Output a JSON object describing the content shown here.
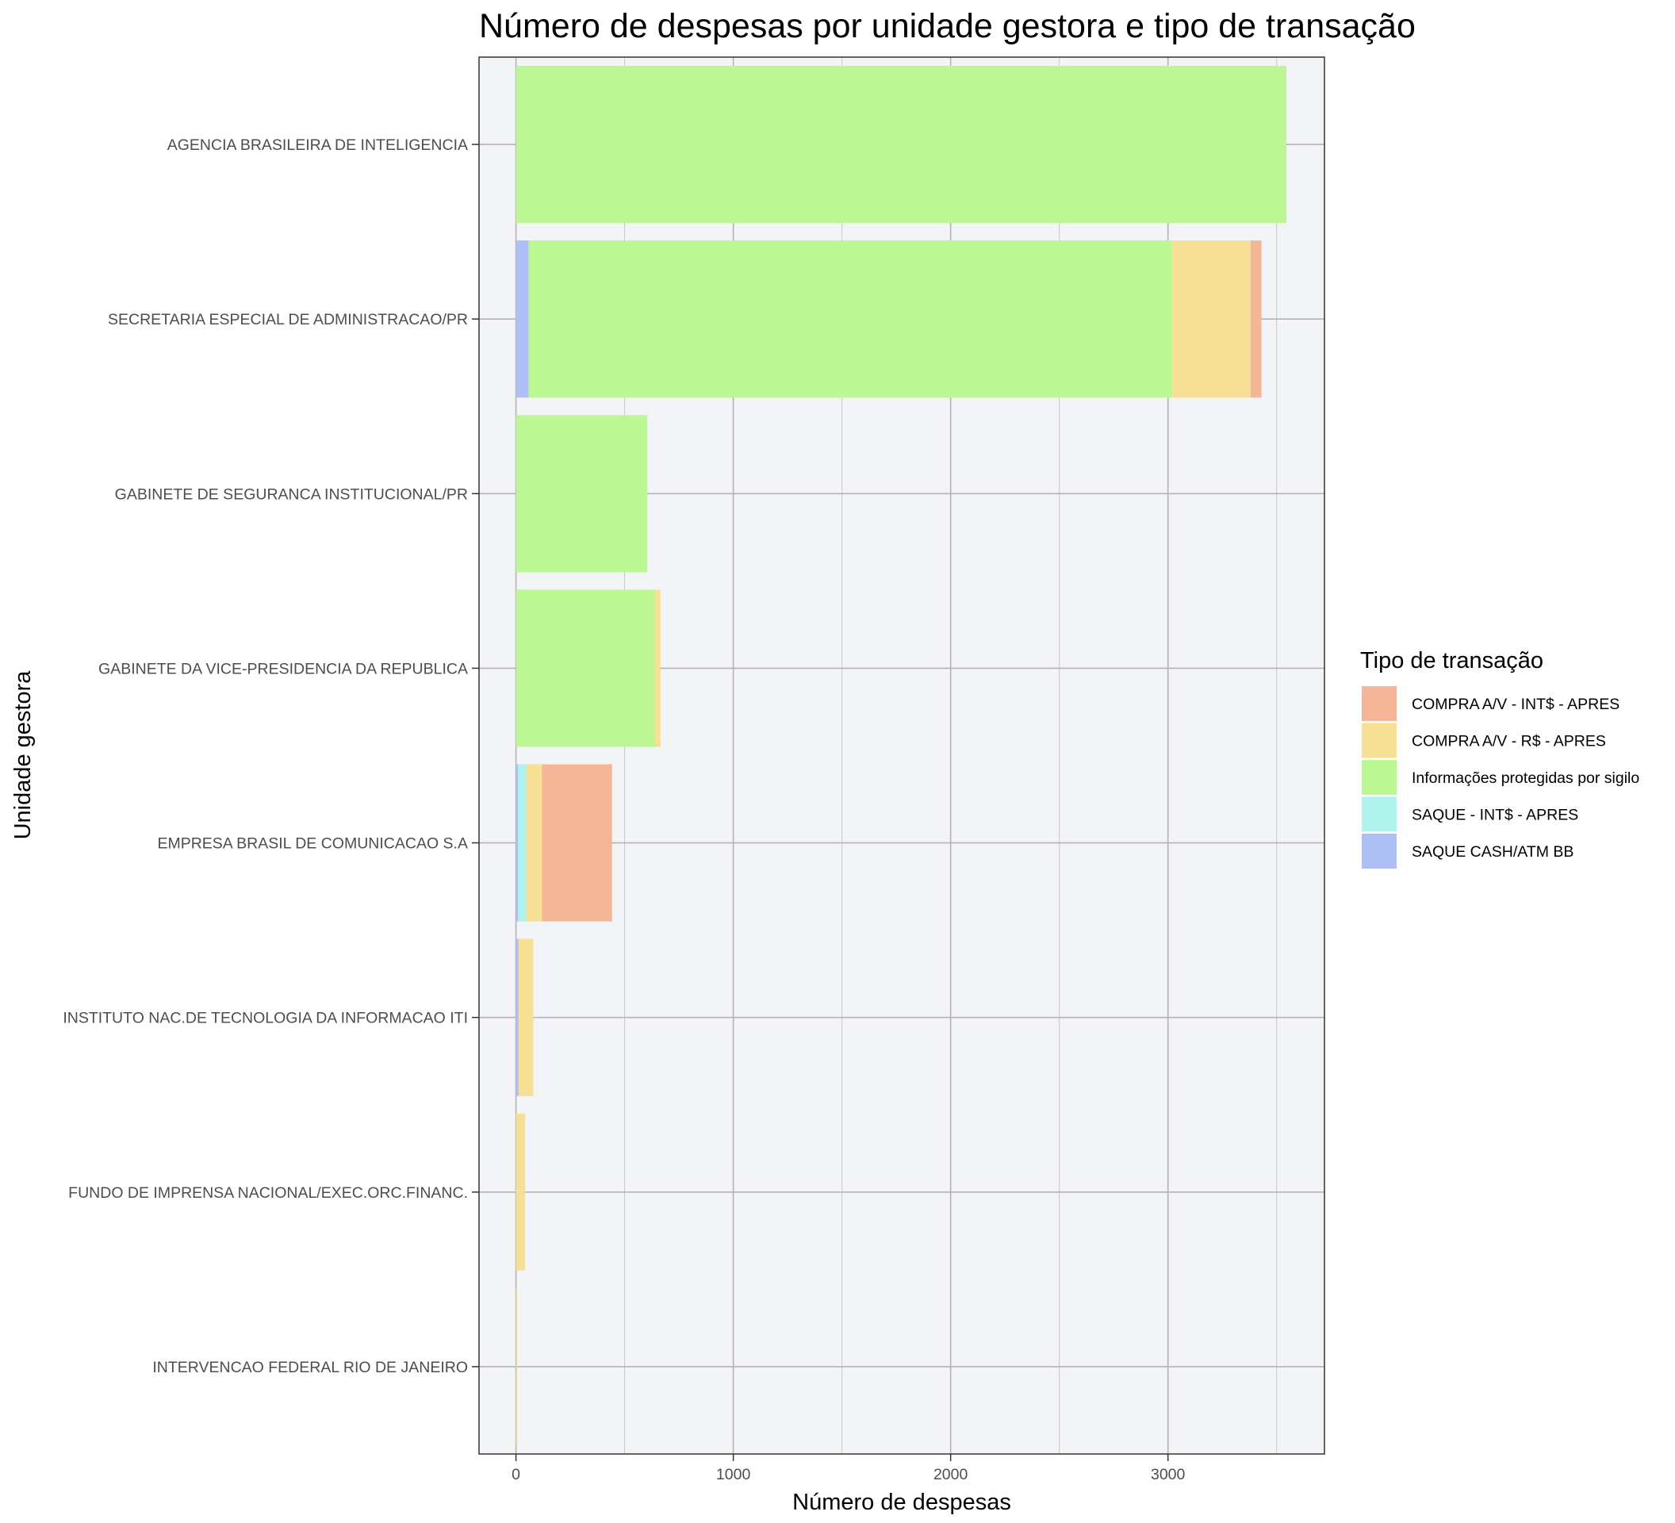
{
  "chart_data": {
    "type": "bar",
    "orientation": "horizontal",
    "stacked": true,
    "title": "Número de despesas por unidade gestora e tipo de transação",
    "xlabel": "Número de despesas",
    "ylabel": "Unidade gestora",
    "xlim": [
      -170,
      3720
    ],
    "xticks": [
      0,
      1000,
      2000,
      3000
    ],
    "grid": true,
    "legend": {
      "title": "Tipo de transação",
      "position": "right"
    },
    "categories": [
      "AGENCIA BRASILEIRA DE INTELIGENCIA",
      "SECRETARIA ESPECIAL DE ADMINISTRACAO/PR",
      "GABINETE DE SEGURANCA INSTITUCIONAL/PR",
      "GABINETE DA VICE-PRESIDENCIA DA REPUBLICA",
      "EMPRESA BRASIL DE COMUNICACAO S.A",
      "INSTITUTO NAC.DE TECNOLOGIA DA INFORMACAO ITI",
      "FUNDO DE IMPRENSA NACIONAL/EXEC.ORC.FINANC.",
      "INTERVENCAO FEDERAL RIO DE JANEIRO"
    ],
    "series": [
      {
        "name": "SAQUE CASH/ATM BB",
        "color": "#aebff5",
        "values": [
          0,
          58,
          0,
          0,
          10,
          12,
          0,
          0
        ]
      },
      {
        "name": "SAQUE - INT$ - APRES",
        "color": "#aff3ec",
        "values": [
          0,
          0,
          0,
          0,
          38,
          0,
          0,
          0
        ]
      },
      {
        "name": "Informações protegidas por sigilo",
        "color": "#bdf794",
        "values": [
          3545,
          2962,
          605,
          640,
          0,
          0,
          0,
          0
        ]
      },
      {
        "name": "COMPRA A/V - R$ - APRES",
        "color": "#f5e096",
        "values": [
          0,
          360,
          0,
          25,
          72,
          68,
          42,
          6
        ]
      },
      {
        "name": "COMPRA A/V - INT$ - APRES",
        "color": "#f5b597",
        "values": [
          0,
          50,
          0,
          0,
          322,
          0,
          0,
          0
        ]
      }
    ],
    "legend_order": [
      "COMPRA A/V - INT$ - APRES",
      "COMPRA A/V - R$ - APRES",
      "Informações protegidas por sigilo",
      "SAQUE - INT$ - APRES",
      "SAQUE CASH/ATM BB"
    ]
  }
}
